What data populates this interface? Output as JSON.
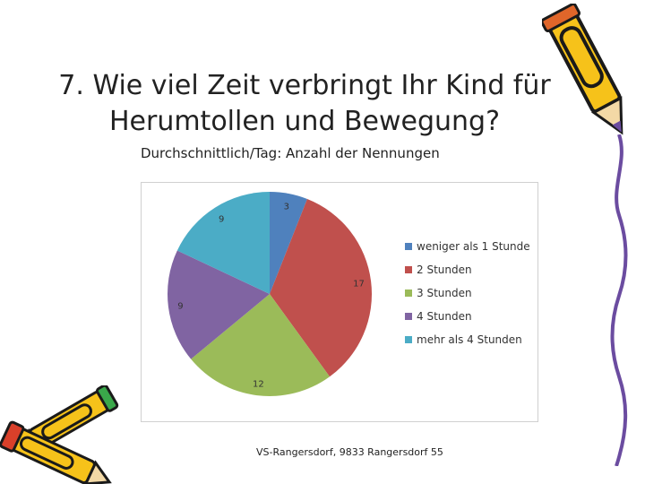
{
  "slide": {
    "title_line1": "7. Wie viel Zeit verbringt Ihr Kind für",
    "title_line2": "Herumtollen und Bewegung?",
    "subtitle": "Durchschnittlich/Tag: Anzahl der Nennungen",
    "footer": "VS-Rangersdorf, 9833 Rangersdorf 55"
  },
  "decorations": {
    "icon_top_right": "pencil-icon",
    "icon_bottom_left": "pencil-icon"
  },
  "chart_data": {
    "type": "pie",
    "categories": [
      "weniger als 1 Stunde",
      "2 Stunden",
      "3 Stunden",
      "4 Stunden",
      "mehr als 4 Stunden"
    ],
    "values": [
      3,
      17,
      12,
      9,
      9
    ],
    "labels": [
      "3",
      "17",
      "12",
      "9",
      "9"
    ],
    "colors": [
      "#4f81bd",
      "#c0504d",
      "#9bbb59",
      "#8064a2",
      "#4bacc6"
    ],
    "legend_position": "right"
  }
}
